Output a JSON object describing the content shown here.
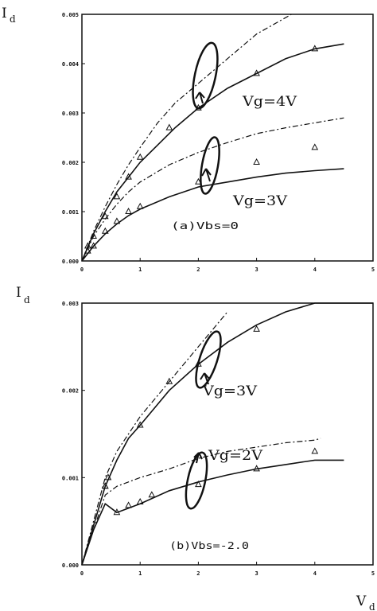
{
  "chart_data": [
    {
      "type": "line",
      "panel": "a",
      "ylabel": "Id",
      "ylim": [
        0,
        0.005
      ],
      "xlim": [
        0,
        5
      ],
      "xticks": [
        "0",
        "1",
        "2",
        "3",
        "4",
        "5"
      ],
      "xtick_values": [
        0,
        1,
        2,
        3,
        4,
        5
      ],
      "yticks": [
        "0.000",
        "0.001",
        "0.002",
        "0.003",
        "0.004",
        "0.005"
      ],
      "ytick_values": [
        0,
        0.001,
        0.002,
        0.003,
        0.004,
        0.005
      ],
      "grid": false,
      "condition_label": "(a)Vbs=0",
      "curve_labels": [
        "Vg=4V",
        "Vg=3V"
      ],
      "series": [
        {
          "style": "dashdot",
          "x": [
            0,
            0.2,
            0.4,
            0.6,
            0.8,
            1.0,
            1.3,
            1.6,
            2.0,
            2.5,
            3.0,
            3.6
          ],
          "y": [
            0,
            0.0006,
            0.0011,
            0.00155,
            0.00195,
            0.0023,
            0.0028,
            0.0032,
            0.0036,
            0.0041,
            0.0046,
            0.0051
          ]
        },
        {
          "style": "solid",
          "x": [
            0,
            0.2,
            0.4,
            0.6,
            0.8,
            1.0,
            1.3,
            1.6,
            2.0,
            2.5,
            3.0,
            3.5,
            4.0,
            4.5
          ],
          "y": [
            0,
            0.00055,
            0.001,
            0.0014,
            0.0017,
            0.002,
            0.00235,
            0.0027,
            0.0031,
            0.0035,
            0.0038,
            0.0041,
            0.0043,
            0.0044
          ]
        },
        {
          "style": "dashdot",
          "x": [
            0,
            0.2,
            0.4,
            0.6,
            0.8,
            1.0,
            1.5,
            2.0,
            2.5,
            3.0,
            3.5,
            4.0,
            4.5
          ],
          "y": [
            0,
            0.0005,
            0.00085,
            0.00115,
            0.0014,
            0.0016,
            0.00195,
            0.0022,
            0.0024,
            0.00258,
            0.0027,
            0.0028,
            0.0029
          ]
        },
        {
          "style": "solid",
          "x": [
            0,
            0.2,
            0.4,
            0.6,
            0.8,
            1.0,
            1.5,
            2.0,
            2.5,
            3.0,
            3.5,
            4.0,
            4.5
          ],
          "y": [
            0,
            0.0003,
            0.00055,
            0.00075,
            0.00092,
            0.00105,
            0.0013,
            0.0015,
            0.0016,
            0.0017,
            0.00178,
            0.00183,
            0.00187
          ]
        },
        {
          "style": "triangles",
          "x": [
            0.1,
            0.2,
            0.4,
            0.6,
            0.8,
            1.0,
            1.5,
            2.0,
            3.0,
            4.0
          ],
          "y": [
            0.0003,
            0.0005,
            0.0009,
            0.0013,
            0.0017,
            0.0021,
            0.0027,
            0.0031,
            0.0038,
            0.0043
          ]
        },
        {
          "style": "triangles",
          "x": [
            0.1,
            0.2,
            0.4,
            0.6,
            0.8,
            1.0,
            2.0,
            3.0,
            4.0
          ],
          "y": [
            0.0002,
            0.0003,
            0.0006,
            0.0008,
            0.001,
            0.0011,
            0.0016,
            0.002,
            0.0023
          ]
        }
      ]
    },
    {
      "type": "line",
      "panel": "b",
      "ylabel": "Id",
      "xlabel": "Vd",
      "ylim": [
        0,
        0.003
      ],
      "xlim": [
        0,
        5
      ],
      "xticks": [
        "0",
        "1",
        "2",
        "3",
        "4",
        "5"
      ],
      "xtick_values": [
        0,
        1,
        2,
        3,
        4,
        5
      ],
      "yticks": [
        "0.000",
        "0.001",
        "0.002",
        "0.003"
      ],
      "ytick_values": [
        0,
        0.001,
        0.002,
        0.003
      ],
      "grid": false,
      "condition_label": "(b)Vbs=-2.0",
      "curve_labels": [
        "Vg=3V",
        "Vg=2V"
      ],
      "series": [
        {
          "style": "dashdot",
          "x": [
            0,
            0.2,
            0.4,
            0.6,
            0.8,
            1.0,
            1.5,
            2.0,
            2.5
          ],
          "y": [
            0,
            0.0005,
            0.001,
            0.0013,
            0.0015,
            0.0017,
            0.0021,
            0.0025,
            0.0029
          ]
        },
        {
          "style": "solid",
          "x": [
            0,
            0.2,
            0.4,
            0.6,
            0.8,
            1.0,
            1.5,
            2.0,
            2.5,
            3.0,
            3.5,
            4.0,
            4.5,
            5.0
          ],
          "y": [
            0,
            0.00045,
            0.0009,
            0.0012,
            0.00145,
            0.0016,
            0.002,
            0.0023,
            0.00255,
            0.00275,
            0.0029,
            0.003,
            0.0031,
            0.0032
          ]
        },
        {
          "style": "dashdot",
          "x": [
            0,
            0.2,
            0.4,
            0.6,
            0.8,
            1.0,
            1.5,
            2.0,
            2.5,
            3.0,
            3.5,
            4.0,
            4.1
          ],
          "y": [
            0,
            0.0004,
            0.0008,
            0.0009,
            0.00095,
            0.001,
            0.0011,
            0.00122,
            0.0013,
            0.00135,
            0.0014,
            0.00143,
            0.00145
          ]
        },
        {
          "style": "solid",
          "x": [
            0,
            0.2,
            0.4,
            0.6,
            0.8,
            1.0,
            1.5,
            2.0,
            2.5,
            3.0,
            3.5,
            4.0,
            4.5
          ],
          "y": [
            0,
            0.0004,
            0.0007,
            0.0006,
            0.00065,
            0.0007,
            0.00085,
            0.00095,
            0.00103,
            0.0011,
            0.00115,
            0.0012,
            0.0012
          ]
        },
        {
          "style": "triangles",
          "x": [
            0.4,
            0.45,
            1.0,
            1.5,
            2.0,
            3.0
          ],
          "y": [
            0.0009,
            0.001,
            0.0016,
            0.0021,
            0.0023,
            0.0027
          ]
        },
        {
          "style": "triangles",
          "x": [
            0.4,
            0.6,
            0.8,
            1.0,
            1.2,
            2.0,
            3.0,
            4.0
          ],
          "y": [
            0.0009,
            0.0006,
            0.00068,
            0.00072,
            0.0008,
            0.00092,
            0.0011,
            0.0013
          ]
        }
      ]
    }
  ]
}
